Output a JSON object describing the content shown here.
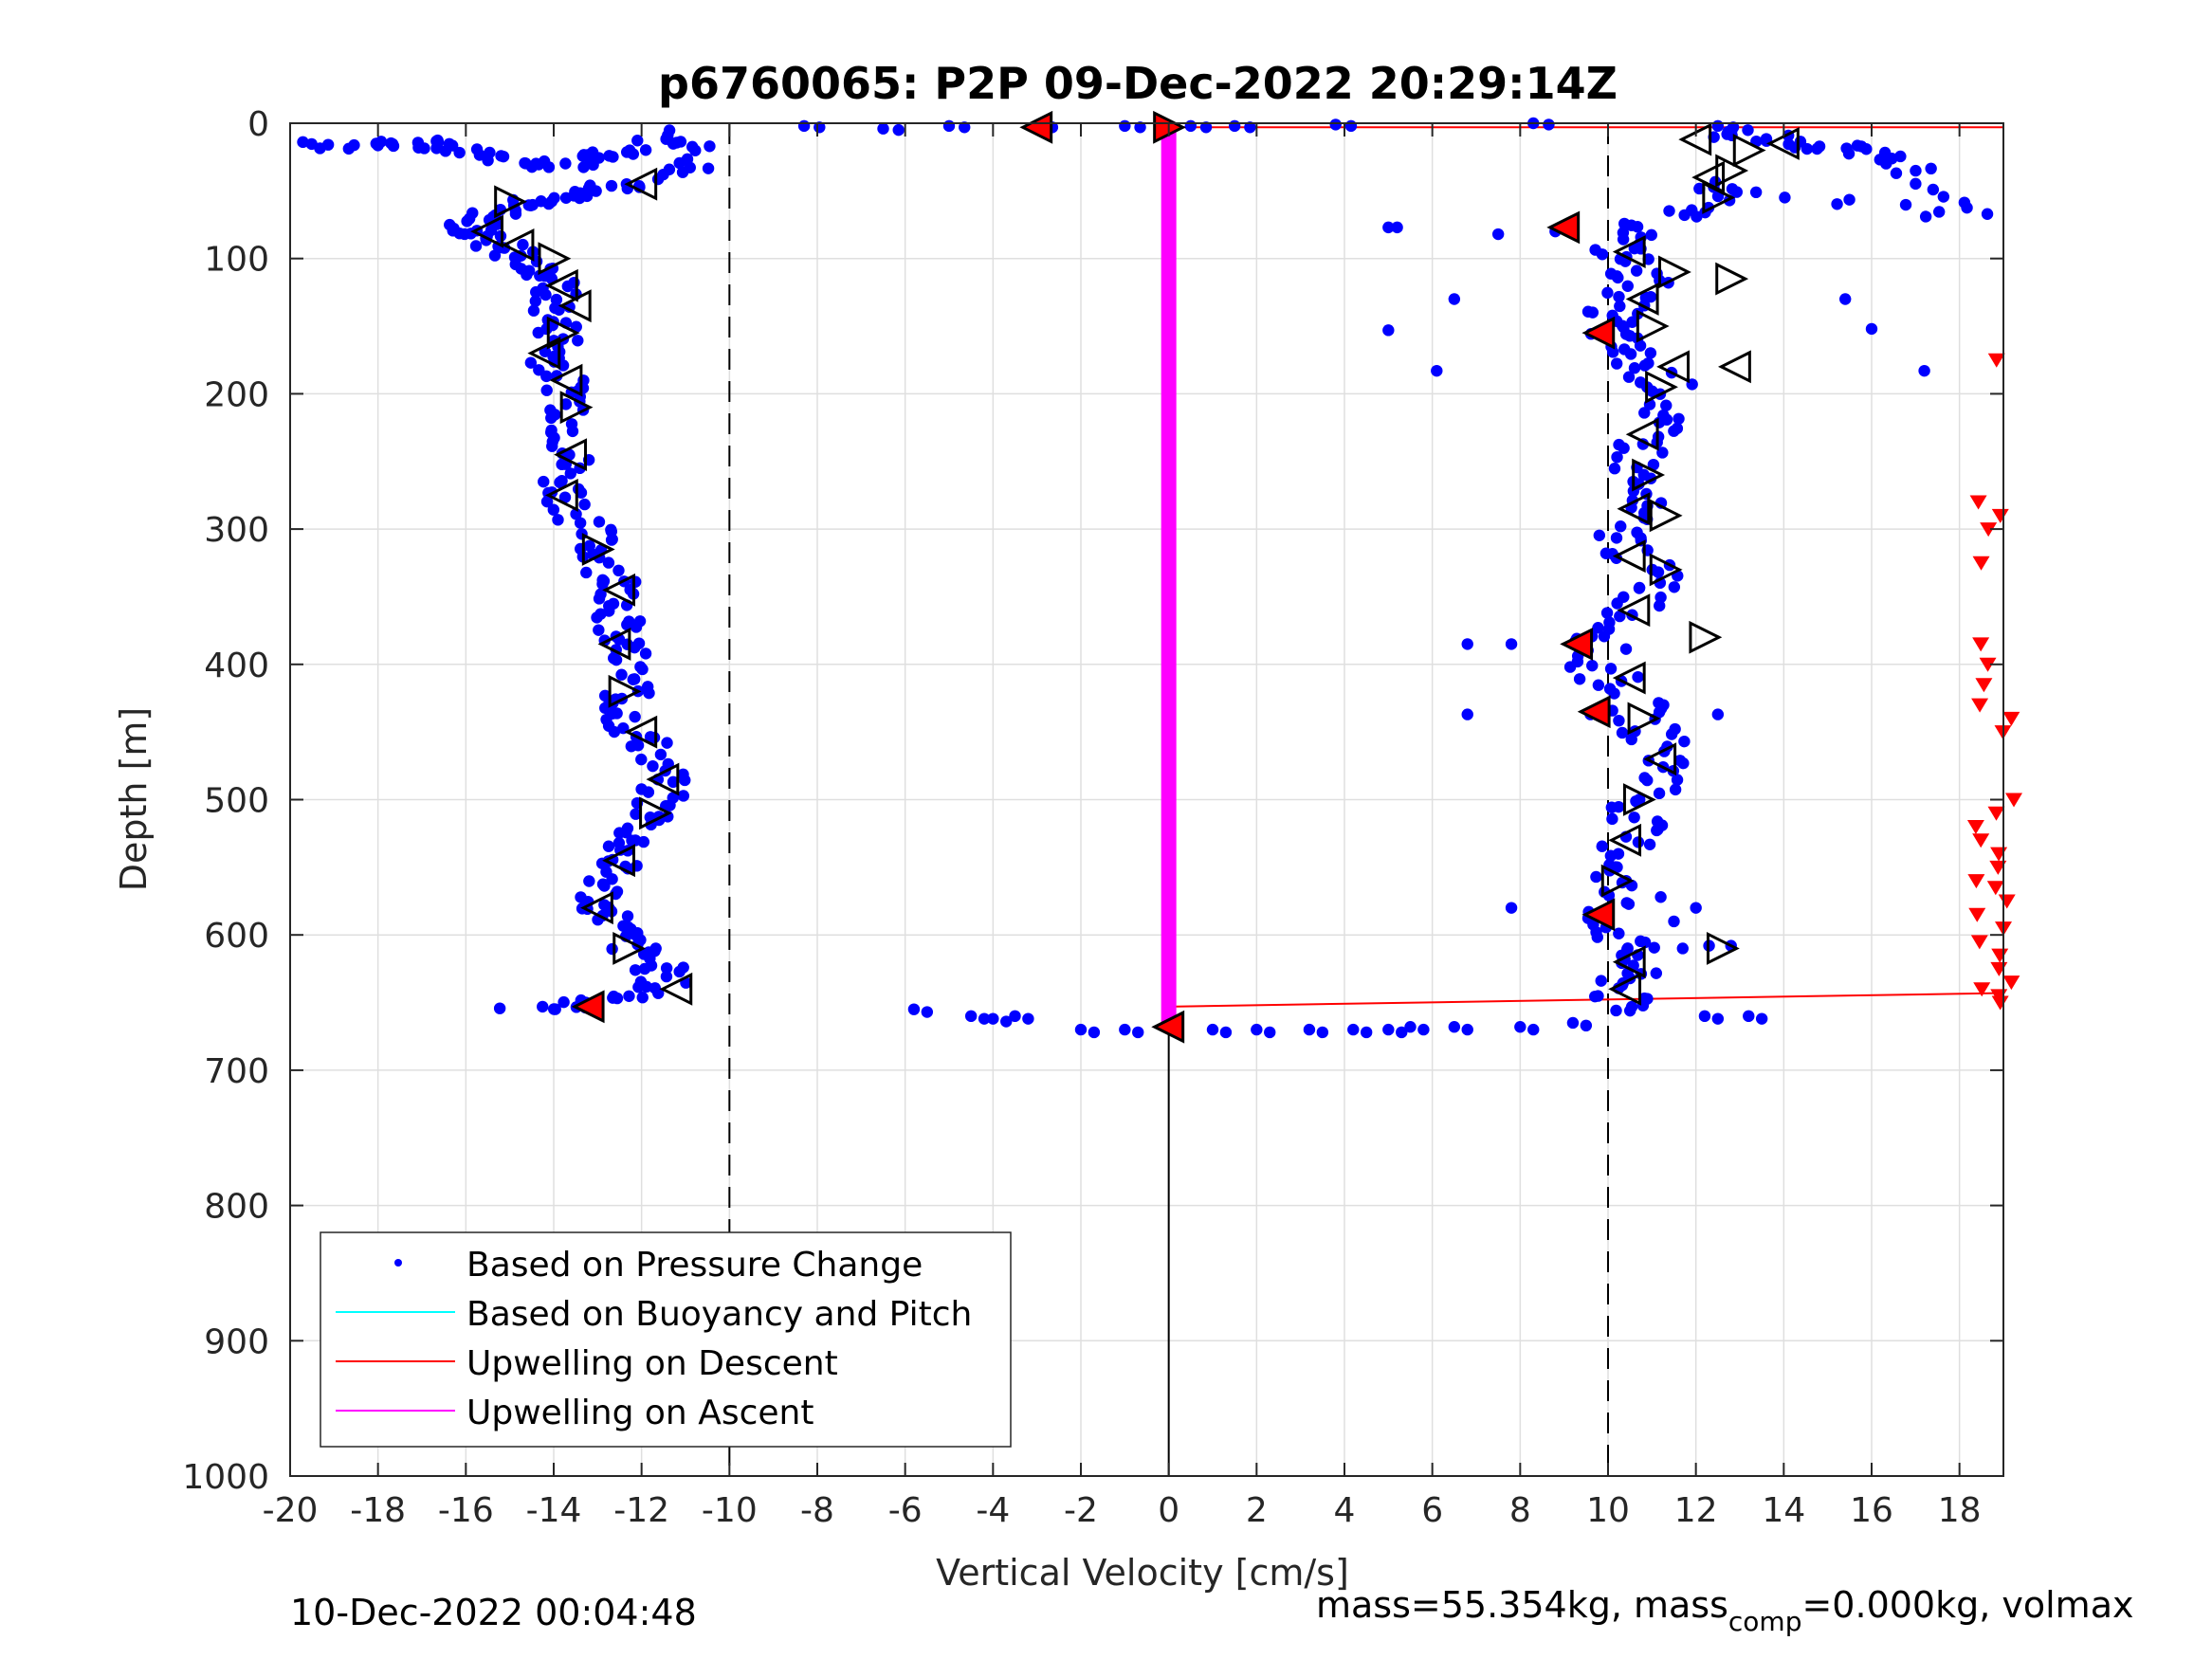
{
  "chart_data": {
    "type": "scatter",
    "title": "p6760065: P2P 09-Dec-2022 20:29:14Z",
    "xlabel": "Vertical Velocity [cm/s]",
    "ylabel": "Depth [m]",
    "xlim": [
      -20,
      19
    ],
    "ylim": [
      0,
      1000
    ],
    "y_reversed": true,
    "x_ticks": [
      "-20",
      "-18",
      "-16",
      "-14",
      "-12",
      "-10",
      "-8",
      "-6",
      "-4",
      "-2",
      "0",
      "2",
      "4",
      "6",
      "8",
      "10",
      "12",
      "14",
      "16",
      "18"
    ],
    "y_ticks": [
      "0",
      "100",
      "200",
      "300",
      "400",
      "500",
      "600",
      "700",
      "800",
      "900",
      "1000"
    ],
    "grid": true,
    "reference_lines": [
      {
        "x": -10,
        "style": "dashed"
      },
      {
        "x": 10,
        "style": "dashed"
      },
      {
        "x": 0,
        "style": "solid",
        "from_depth": 668,
        "to_depth": 1000
      }
    ],
    "legend": {
      "placement": "bottom-left",
      "entries": [
        {
          "label": "Based on Pressure Change",
          "color": "#0000ff",
          "marker": "dot"
        },
        {
          "label": "Based on Buoyancy and Pitch",
          "color": "#00ffff",
          "marker": "line"
        },
        {
          "label": "Upwelling on Descent",
          "color": "#ff0000",
          "marker": "line"
        },
        {
          "label": "Upwelling on Ascent",
          "color": "#ff00ff",
          "marker": "line"
        }
      ]
    },
    "series": [
      {
        "name": "Based on Pressure Change",
        "color": "#0000ff",
        "marker": "dot",
        "descent_profile": [
          [
            -19.5,
            15
          ],
          [
            -18,
            18
          ],
          [
            -17,
            14
          ],
          [
            -16,
            18
          ],
          [
            -15,
            28
          ],
          [
            -14,
            32
          ],
          [
            -13,
            24
          ],
          [
            -12,
            20
          ],
          [
            -11,
            8
          ],
          [
            -10.6,
            34
          ],
          [
            -12,
            45
          ],
          [
            -13,
            50
          ],
          [
            -14,
            55
          ],
          [
            -15,
            60
          ],
          [
            -15.5,
            70
          ],
          [
            -16,
            78
          ],
          [
            -15.5,
            85
          ],
          [
            -15,
            95
          ],
          [
            -14.5,
            105
          ],
          [
            -14,
            115
          ],
          [
            -14,
            130
          ],
          [
            -14,
            145
          ],
          [
            -13.8,
            160
          ],
          [
            -14,
            175
          ],
          [
            -13.8,
            190
          ],
          [
            -13.5,
            205
          ],
          [
            -13.6,
            225
          ],
          [
            -13.6,
            245
          ],
          [
            -13.8,
            265
          ],
          [
            -13.6,
            280
          ],
          [
            -13.2,
            300
          ],
          [
            -13,
            315
          ],
          [
            -12.6,
            335
          ],
          [
            -12.4,
            350
          ],
          [
            -12.5,
            365
          ],
          [
            -12.6,
            380
          ],
          [
            -12.4,
            395
          ],
          [
            -12.2,
            415
          ],
          [
            -12.5,
            430
          ],
          [
            -12.3,
            445
          ],
          [
            -11.8,
            460
          ],
          [
            -11.5,
            480
          ],
          [
            -11.6,
            500
          ],
          [
            -11.8,
            515
          ],
          [
            -12.2,
            530
          ],
          [
            -12.5,
            545
          ],
          [
            -12.8,
            560
          ],
          [
            -13,
            575
          ],
          [
            -12.6,
            590
          ],
          [
            -12.4,
            605
          ],
          [
            -11.8,
            618
          ],
          [
            -11.4,
            632
          ],
          [
            -12,
            645
          ],
          [
            -13.2,
            652
          ],
          [
            -15,
            652
          ]
        ],
        "ascent_profile": [
          [
            12.5,
            5
          ],
          [
            13.5,
            12
          ],
          [
            15,
            18
          ],
          [
            16,
            20
          ],
          [
            17.2,
            38
          ],
          [
            18,
            70
          ],
          [
            13,
            45
          ],
          [
            12,
            60
          ],
          [
            11,
            75
          ],
          [
            10.2,
            90
          ],
          [
            10.5,
            105
          ],
          [
            10.8,
            120
          ],
          [
            10.2,
            135
          ],
          [
            10,
            150
          ],
          [
            10.2,
            165
          ],
          [
            10.8,
            180
          ],
          [
            11.5,
            200
          ],
          [
            11,
            220
          ],
          [
            10.8,
            240
          ],
          [
            10.6,
            260
          ],
          [
            10.6,
            280
          ],
          [
            10.3,
            300
          ],
          [
            10.6,
            320
          ],
          [
            11.2,
            340
          ],
          [
            10.6,
            360
          ],
          [
            10,
            380
          ],
          [
            9.5,
            400
          ],
          [
            10.5,
            420
          ],
          [
            10.8,
            440
          ],
          [
            11.2,
            460
          ],
          [
            11.5,
            480
          ],
          [
            10.8,
            500
          ],
          [
            10.6,
            520
          ],
          [
            10.4,
            540
          ],
          [
            10.2,
            560
          ],
          [
            10,
            580
          ],
          [
            10.2,
            600
          ],
          [
            10.6,
            615
          ],
          [
            10.4,
            630
          ],
          [
            10.2,
            645
          ],
          [
            10.4,
            660
          ]
        ],
        "surface_row": [
          [
            -8.3,
            2
          ],
          [
            -6.5,
            4
          ],
          [
            -5,
            2
          ],
          [
            -3,
            2
          ],
          [
            -1,
            2
          ],
          [
            0.5,
            2
          ],
          [
            1.5,
            2
          ],
          [
            3.8,
            1
          ],
          [
            8.3,
            0
          ],
          [
            12.5,
            2
          ]
        ],
        "bottom_row": [
          [
            -5.8,
            655
          ],
          [
            -4.5,
            660
          ],
          [
            -4,
            662
          ],
          [
            -3.5,
            660
          ],
          [
            -2,
            670
          ],
          [
            -1,
            670
          ],
          [
            1,
            670
          ],
          [
            2,
            670
          ],
          [
            3.2,
            670
          ],
          [
            4.2,
            670
          ],
          [
            5,
            670
          ],
          [
            5.5,
            668
          ],
          [
            6.5,
            668
          ],
          [
            8,
            668
          ],
          [
            9.2,
            665
          ],
          [
            12.2,
            660
          ],
          [
            13.2,
            660
          ]
        ],
        "outliers": [
          [
            5,
            77
          ],
          [
            5.2,
            77
          ],
          [
            6.5,
            130
          ],
          [
            5,
            153
          ],
          [
            6.1,
            183
          ],
          [
            6.8,
            385
          ],
          [
            7.8,
            385
          ],
          [
            6.8,
            437
          ],
          [
            7.8,
            580
          ],
          [
            12.5,
            437
          ],
          [
            12,
            580
          ],
          [
            15.4,
            130
          ],
          [
            16,
            152
          ],
          [
            17.2,
            183
          ],
          [
            9.3,
            386
          ],
          [
            9.6,
            437
          ],
          [
            8.8,
            80
          ],
          [
            7.5,
            82
          ],
          [
            12.3,
            608
          ],
          [
            12.8,
            608
          ],
          [
            11.7,
            610
          ],
          [
            11.5,
            590
          ],
          [
            11.2,
            572
          ]
        ]
      },
      {
        "name": "Based on Buoyancy and Pitch",
        "color": "#00ffff",
        "values": []
      },
      {
        "name": "Upwelling on Descent",
        "color": "#ff0000",
        "line_segments": [
          [
            [
              0,
              3
            ],
            [
              19,
              3
            ]
          ],
          [
            [
              0,
              653
            ],
            [
              19,
              643
            ]
          ]
        ],
        "triangle_markers_x": 18.8,
        "triangle_markers_depth": [
          175,
          280,
          290,
          300,
          325,
          385,
          400,
          415,
          430,
          440,
          450,
          500,
          510,
          520,
          530,
          540,
          550,
          560,
          565,
          575,
          585,
          595,
          605,
          615,
          625,
          635,
          640,
          645,
          650
        ]
      },
      {
        "name": "Upwelling on Ascent",
        "color": "#ff00ff",
        "vertical_band": {
          "x": 0,
          "from_depth": 0,
          "to_depth": 668
        }
      }
    ],
    "vehicle_markers": {
      "descent_triangles": [
        [
          -15,
          58
        ],
        [
          -15.5,
          80
        ],
        [
          -14.8,
          90
        ],
        [
          -14,
          100
        ],
        [
          -13.8,
          120
        ],
        [
          -13.5,
          135
        ],
        [
          -13.8,
          155
        ],
        [
          -14.2,
          170
        ],
        [
          -13.7,
          190
        ],
        [
          -13.5,
          210
        ],
        [
          -13.6,
          245
        ],
        [
          -13.8,
          275
        ],
        [
          -13,
          315
        ],
        [
          -12.5,
          345
        ],
        [
          -12.6,
          385
        ],
        [
          -12.4,
          420
        ],
        [
          -12,
          450
        ],
        [
          -11.5,
          485
        ],
        [
          -11.7,
          510
        ],
        [
          -12.5,
          545
        ],
        [
          -13,
          580
        ],
        [
          -12.3,
          610
        ],
        [
          -11.2,
          640
        ],
        [
          -12,
          45
        ]
      ],
      "ascent_triangles": [
        [
          12,
          12
        ],
        [
          13.2,
          20
        ],
        [
          14,
          15
        ],
        [
          12.8,
          35
        ],
        [
          12.3,
          40
        ],
        [
          12.5,
          55
        ],
        [
          10.5,
          95
        ],
        [
          11.5,
          110
        ],
        [
          10.8,
          130
        ],
        [
          11,
          150
        ],
        [
          11.5,
          180
        ],
        [
          11.2,
          195
        ],
        [
          10.8,
          230
        ],
        [
          10.9,
          260
        ],
        [
          10.6,
          285
        ],
        [
          11.3,
          290
        ],
        [
          10.5,
          320
        ],
        [
          11.3,
          330
        ],
        [
          10.6,
          360
        ],
        [
          12.2,
          380
        ],
        [
          10.5,
          410
        ],
        [
          10.8,
          440
        ],
        [
          11.2,
          470
        ],
        [
          10.7,
          500
        ],
        [
          10.4,
          530
        ],
        [
          10.2,
          560
        ],
        [
          10.5,
          620
        ],
        [
          12.6,
          610
        ],
        [
          10.4,
          640
        ],
        [
          12.8,
          115
        ],
        [
          12.9,
          180
        ]
      ],
      "red_triangles": [
        [
          -3,
          3
        ],
        [
          0,
          3
        ],
        [
          9,
          77
        ],
        [
          9.8,
          155
        ],
        [
          9.3,
          385
        ],
        [
          9.7,
          435
        ],
        [
          9.8,
          585
        ],
        [
          -13.2,
          653
        ],
        [
          0,
          668
        ]
      ]
    }
  },
  "footer": {
    "timestamp": "10-Dec-2022 00:04:48",
    "mass_prefix": "mass=55.354kg, mass",
    "mass_sub": "comp",
    "mass_suffix": "=0.000kg, volmax"
  }
}
